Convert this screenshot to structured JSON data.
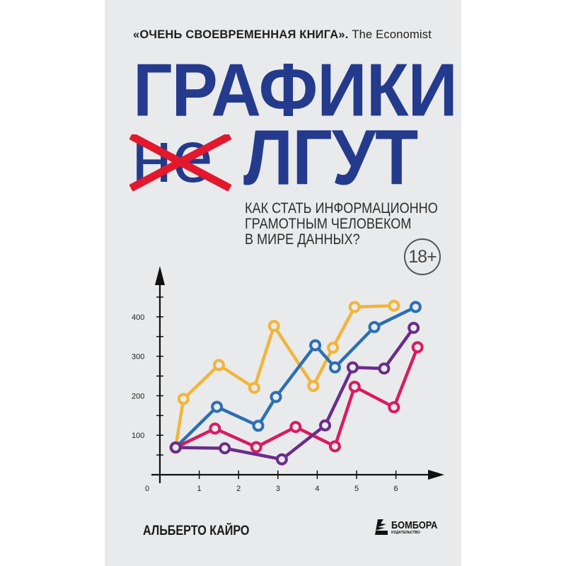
{
  "cover": {
    "quote": "«ОЧЕНЬ СВОЕВРЕМЕННАЯ КНИГА».",
    "quote_source": "The Economist",
    "title_line1": "ГРАФИКИ",
    "title_crossed": "не",
    "title_line2": "ЛГУТ",
    "subtitle_lines": [
      "КАК СТАТЬ ИНФОРМАЦИОННО",
      "ГРАМОТНЫМ ЧЕЛОВЕКОМ",
      "В МИРЕ ДАННЫХ?"
    ],
    "age_rating": "18+",
    "author": "АЛЬБЕРТО КАЙРО",
    "publisher": "БОМБОРА",
    "publisher_sub": "ИЗДАТЕЛЬСТВО"
  },
  "colors": {
    "background": "#e9eaeb",
    "title_blue": "#243a8c",
    "cross_red": "#e3182d"
  },
  "chart_data": {
    "type": "line",
    "xlim": [
      0,
      7
    ],
    "ylim": [
      0,
      500
    ],
    "x_ticks": [
      "0",
      "1",
      "2",
      "3",
      "4",
      "5",
      "6"
    ],
    "y_ticks": [
      "100",
      "200",
      "300",
      "400"
    ],
    "grid": false,
    "series": [
      {
        "color": "#f2b53a",
        "points": [
          [
            0.4,
            69
          ],
          [
            0.6,
            192
          ],
          [
            1.5,
            278
          ],
          [
            2.4,
            220
          ],
          [
            2.9,
            377
          ],
          [
            3.9,
            225
          ],
          [
            4.4,
            322
          ],
          [
            4.95,
            425
          ],
          [
            5.95,
            428
          ]
        ]
      },
      {
        "color": "#2a6fb5",
        "points": [
          [
            0.4,
            69
          ],
          [
            1.45,
            172
          ],
          [
            2.5,
            124
          ],
          [
            2.95,
            197
          ],
          [
            3.95,
            328
          ],
          [
            4.45,
            272
          ],
          [
            5.45,
            374
          ],
          [
            6.5,
            425
          ]
        ]
      },
      {
        "color": "#d81b60",
        "points": [
          [
            0.4,
            69
          ],
          [
            1.4,
            117
          ],
          [
            2.45,
            70
          ],
          [
            3.45,
            121
          ],
          [
            4.45,
            72
          ],
          [
            4.95,
            223
          ],
          [
            5.95,
            171
          ],
          [
            6.55,
            323
          ]
        ]
      },
      {
        "color": "#6a2c8c",
        "points": [
          [
            0.4,
            69
          ],
          [
            1.65,
            67
          ],
          [
            3.1,
            39
          ],
          [
            4.2,
            125
          ],
          [
            4.9,
            272
          ],
          [
            5.7,
            269
          ],
          [
            6.45,
            372
          ]
        ]
      }
    ]
  }
}
